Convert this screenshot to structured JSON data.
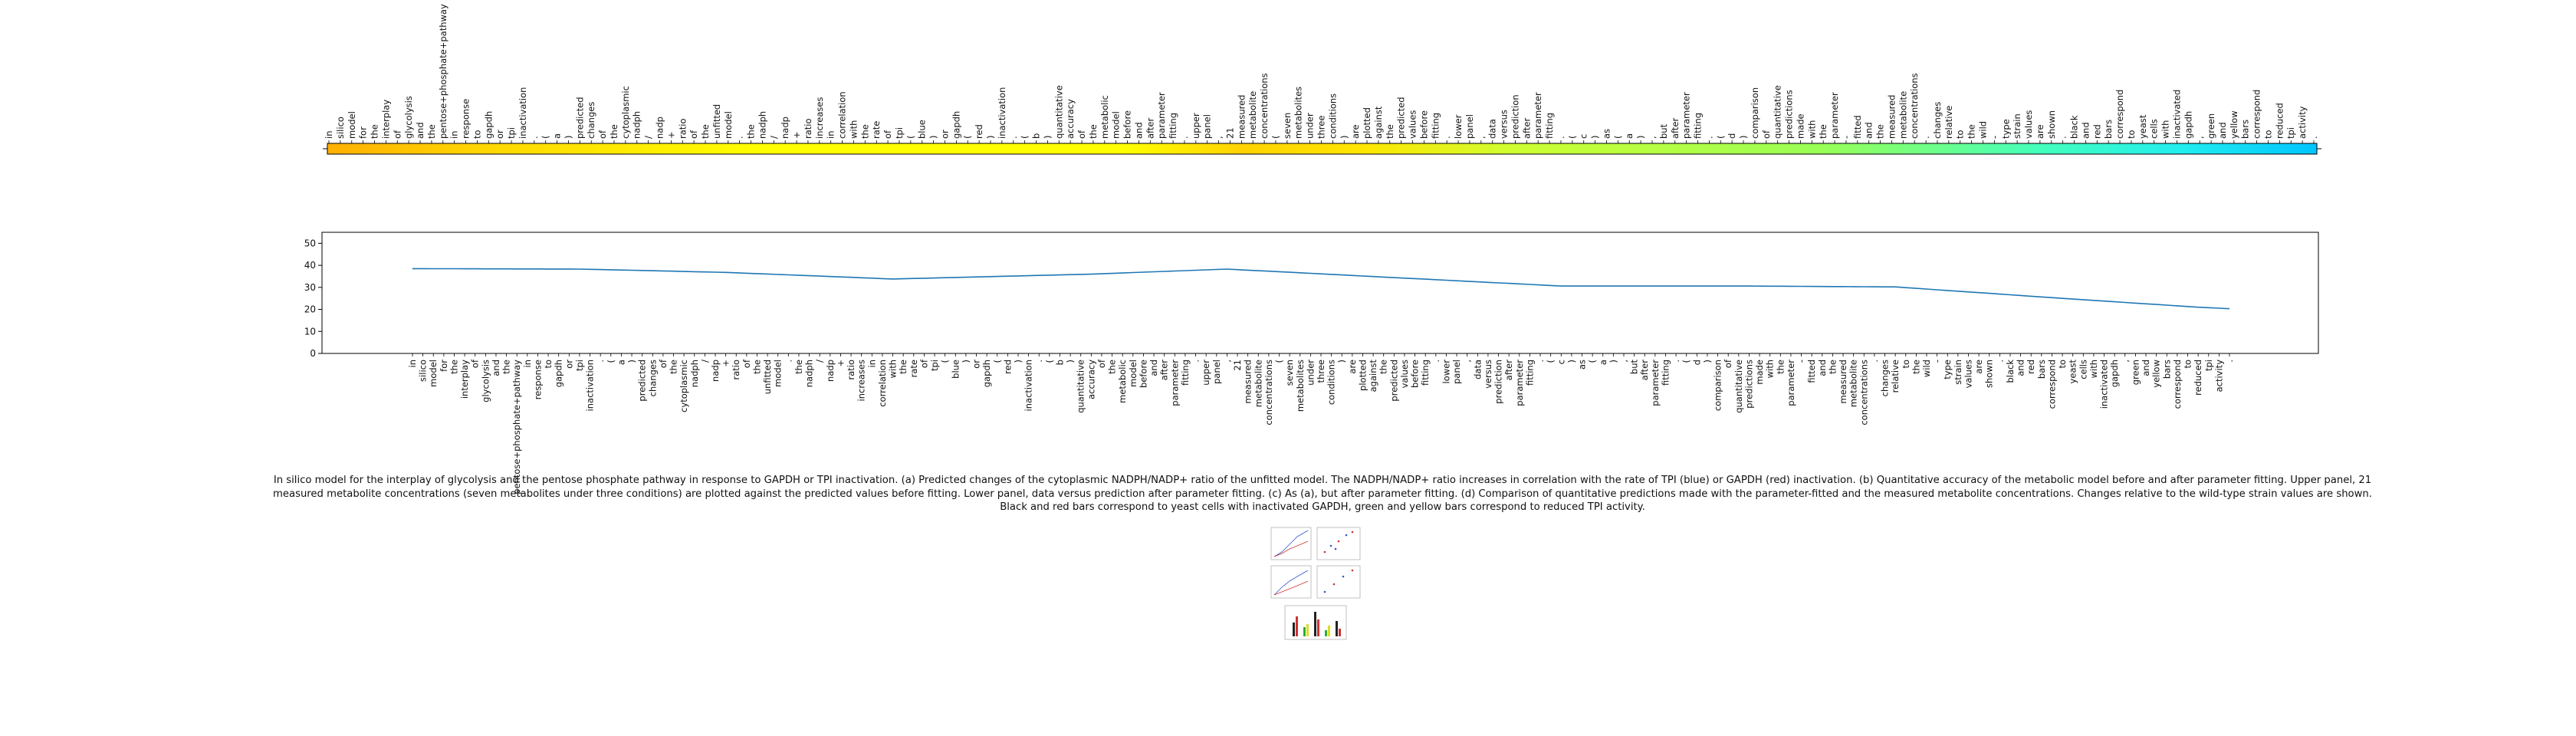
{
  "tokens": [
    "in",
    "silico",
    "model",
    "for",
    "the",
    "interplay",
    "of",
    "glycolysis",
    "and",
    "the",
    "pentose+phosphate+pathway",
    "in",
    "response",
    "to",
    "gapdh",
    "or",
    "tpi",
    "inactivation",
    ".",
    "(",
    "a",
    ")",
    "predicted",
    "changes",
    "of",
    "the",
    "cytoplasmic",
    "nadph",
    "/",
    "nadp",
    "+",
    "ratio",
    "of",
    "the",
    "unfitted",
    "model",
    ".",
    "the",
    "nadph",
    "/",
    "nadp",
    "+",
    "ratio",
    "increases",
    "in",
    "correlation",
    "with",
    "the",
    "rate",
    "of",
    "tpi",
    "(",
    "blue",
    ")",
    "or",
    "gapdh",
    "(",
    "red",
    ")",
    "inactivation",
    ".",
    "(",
    "b",
    ")",
    "quantitative",
    "accuracy",
    "of",
    "the",
    "metabolic",
    "model",
    "before",
    "and",
    "after",
    "parameter",
    "fitting",
    ".",
    "upper",
    "panel",
    ",",
    "21",
    "measured",
    "metabolite",
    "concentrations",
    "(",
    "seven",
    "metabolites",
    "under",
    "three",
    "conditions",
    ")",
    "are",
    "plotted",
    "against",
    "the",
    "predicted",
    "values",
    "before",
    "fitting",
    ".",
    "lower",
    "panel",
    ",",
    "data",
    "versus",
    "prediction",
    "after",
    "parameter",
    "fitting",
    ".",
    "(",
    "c",
    ")",
    "as",
    "(",
    "a",
    ")",
    ",",
    "but",
    "after",
    "parameter",
    "fitting",
    ".",
    "(",
    "d",
    ")",
    "comparison",
    "of",
    "quantitative",
    "predictions",
    "made",
    "with",
    "the",
    "parameter",
    "-",
    "fitted",
    "and",
    "the",
    "measured",
    "metabolite",
    "concentrations",
    ".",
    "changes",
    "relative",
    "to",
    "the",
    "wild",
    "-",
    "type",
    "strain",
    "values",
    "are",
    "shown",
    ".",
    "black",
    "and",
    "red",
    "bars",
    "correspond",
    "to",
    "yeast",
    "cells",
    "with",
    "inactivated",
    "gapdh",
    ",",
    "green",
    "and",
    "yellow",
    "bars",
    "correspond",
    "to",
    "reduced",
    "tpi",
    "activity",
    "."
  ],
  "chart_data": [
    {
      "type": "heatmap",
      "title": "",
      "xlabel": "",
      "ylabel": "",
      "x": "tokens",
      "colormap": "jet-like (orange -> yellow -> green -> cyan)",
      "color_stops": [
        {
          "at": 0.0,
          "color": "#ffb000"
        },
        {
          "at": 0.08,
          "color": "#ffd700"
        },
        {
          "at": 0.22,
          "color": "#ffff00"
        },
        {
          "at": 0.4,
          "color": "#ffff00"
        },
        {
          "at": 0.46,
          "color": "#ffd200"
        },
        {
          "at": 0.52,
          "color": "#ffe600"
        },
        {
          "at": 0.6,
          "color": "#ccff33"
        },
        {
          "at": 0.75,
          "color": "#99ff55"
        },
        {
          "at": 0.86,
          "color": "#44ffbb"
        },
        {
          "at": 0.93,
          "color": "#22eeee"
        },
        {
          "at": 1.0,
          "color": "#00c4ff"
        }
      ]
    },
    {
      "type": "line",
      "title": "",
      "xlabel": "",
      "ylabel": "",
      "ylim": [
        0,
        55
      ],
      "yticks": [
        0,
        10,
        20,
        30,
        40,
        50
      ],
      "grid": false,
      "x": "tokens",
      "series": [
        {
          "color": "#1f77b4",
          "points": [
            [
              0,
              38.5
            ],
            [
              16,
              38.3
            ],
            [
              30,
              36.8
            ],
            [
              46,
              33.8
            ],
            [
              65,
              36.0
            ],
            [
              78,
              38.3
            ],
            [
              95,
              34.2
            ],
            [
              110,
              30.6
            ],
            [
              128,
              30.6
            ],
            [
              142,
              30.2
            ],
            [
              158,
              25.0
            ],
            [
              171,
              21.0
            ],
            [
              186,
              17.5
            ]
          ]
        }
      ]
    }
  ],
  "caption": "In silico model for the interplay of glycolysis and the pentose phosphate pathway in response to GAPDH or TPI inactivation. (a) Predicted changes of the cytoplasmic NADPH/NADP+ ratio of the unfitted model. The NADPH/NADP+ ratio increases in correlation with the rate of TPI (blue) or GAPDH (red) inactivation. (b) Quantitative accuracy of the metabolic model before and after parameter fitting. Upper panel, 21 measured metabolite concentrations (seven metabolites under three conditions) are plotted against the predicted values before fitting. Lower panel, data versus prediction after parameter fitting. (c) As (a), but after parameter fitting. (d) Comparison of quantitative predictions made with the parameter-fitted and the measured metabolite concentrations. Changes relative to the wild-type strain values are shown. Black and red bars correspond to yeast cells with inactivated GAPDH, green and yellow bars correspond to reduced TPI activity."
}
